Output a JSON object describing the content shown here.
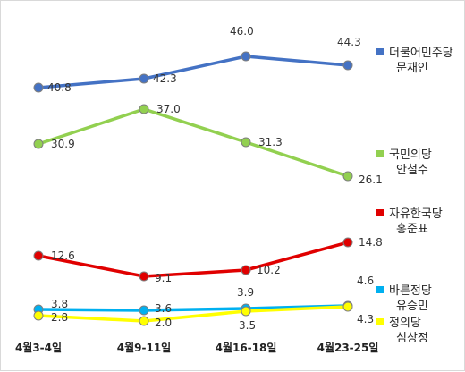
{
  "chart_data": {
    "type": "line",
    "categories": [
      "4월3-4일",
      "4월9-11일",
      "4월16-18일",
      "4월23-25일"
    ],
    "series": [
      {
        "name": "더불어민주당 문재인",
        "name_line1": "더불어민주당",
        "name_line2": "문재인",
        "color": "#4472c4",
        "values": [
          40.8,
          42.3,
          46.0,
          44.3
        ],
        "labels": [
          "40.8",
          "42.3",
          "46.0",
          "44.3"
        ]
      },
      {
        "name": "국민의당 안철수",
        "name_line1": "국민의당",
        "name_line2": "안철수",
        "color": "#92d050",
        "values": [
          30.9,
          37.0,
          31.3,
          26.1
        ],
        "labels": [
          "30.9",
          "37.0",
          "31.3",
          "26.1"
        ]
      },
      {
        "name": "자유한국당 홍준표",
        "name_line1": "자유한국당",
        "name_line2": "홍준표",
        "color": "#e00000",
        "values": [
          12.6,
          9.1,
          10.2,
          14.8
        ],
        "labels": [
          "12.6",
          "9.1",
          "10.2",
          "14.8"
        ]
      },
      {
        "name": "바른정당 유승민",
        "name_line1": "바른정당",
        "name_line2": "유승민",
        "color": "#00b0f0",
        "values": [
          3.8,
          3.6,
          3.9,
          4.6
        ],
        "labels": [
          "3.8",
          "3.6",
          "3.9",
          "4.6"
        ]
      },
      {
        "name": "정의당 심상정",
        "name_line1": "정의당",
        "name_line2": "심상정",
        "color": "#ffff00",
        "values": [
          2.8,
          2.0,
          3.5,
          4.3
        ],
        "labels": [
          "2.8",
          "2.0",
          "3.5",
          "4.3"
        ]
      }
    ],
    "legend_position": "right",
    "grid": false
  }
}
